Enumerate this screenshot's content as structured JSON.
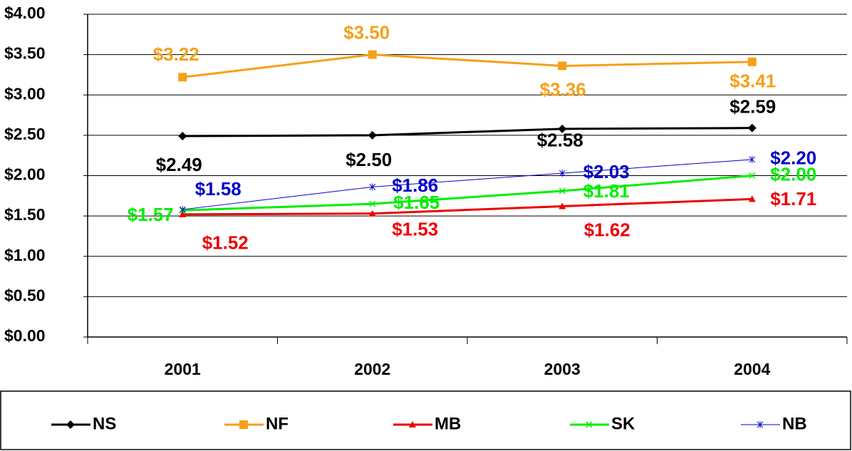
{
  "chart_data": {
    "type": "line",
    "categories": [
      "2001",
      "2002",
      "2003",
      "2004"
    ],
    "ylim": [
      0,
      4
    ],
    "yticks": [
      {
        "value": 0,
        "label": "$0.00"
      },
      {
        "value": 0.5,
        "label": "$0.50"
      },
      {
        "value": 1,
        "label": "$1.00"
      },
      {
        "value": 1.5,
        "label": "$1.50"
      },
      {
        "value": 2,
        "label": "$2.00"
      },
      {
        "value": 2.5,
        "label": "$2.50"
      },
      {
        "value": 3,
        "label": "$3.00"
      },
      {
        "value": 3.5,
        "label": "$3.50"
      },
      {
        "value": 4,
        "label": "$4.00"
      }
    ],
    "grid": true,
    "legend": "bottom",
    "series": [
      {
        "name": "NS",
        "color": "#000000",
        "marker": "diamond",
        "values": [
          2.49,
          2.5,
          2.58,
          2.59
        ],
        "value_labels": [
          "$2.49",
          "$2.50",
          "$2.58",
          "$2.59"
        ]
      },
      {
        "name": "NF",
        "color": "#f5a01a",
        "marker": "square",
        "values": [
          3.22,
          3.5,
          3.36,
          3.41
        ],
        "value_labels": [
          "$3.22",
          "$3.50",
          "$3.36",
          "$3.41"
        ]
      },
      {
        "name": "MB",
        "color": "#ee0000",
        "marker": "triangle",
        "values": [
          1.52,
          1.53,
          1.62,
          1.71
        ],
        "value_labels": [
          "$1.52",
          "$1.53",
          "$1.62",
          "$1.71"
        ]
      },
      {
        "name": "SK",
        "color": "#00ee00",
        "marker": "x",
        "values": [
          1.57,
          1.65,
          1.81,
          2.0
        ],
        "value_labels": [
          "$1.57",
          "$1.65",
          "$1.81",
          "$2.00"
        ]
      },
      {
        "name": "NB",
        "color": "#0000cc",
        "marker": "star",
        "values": [
          1.58,
          1.86,
          2.03,
          2.2
        ],
        "value_labels": [
          "$1.58",
          "$1.86",
          "$2.03",
          "$2.20"
        ]
      }
    ]
  }
}
